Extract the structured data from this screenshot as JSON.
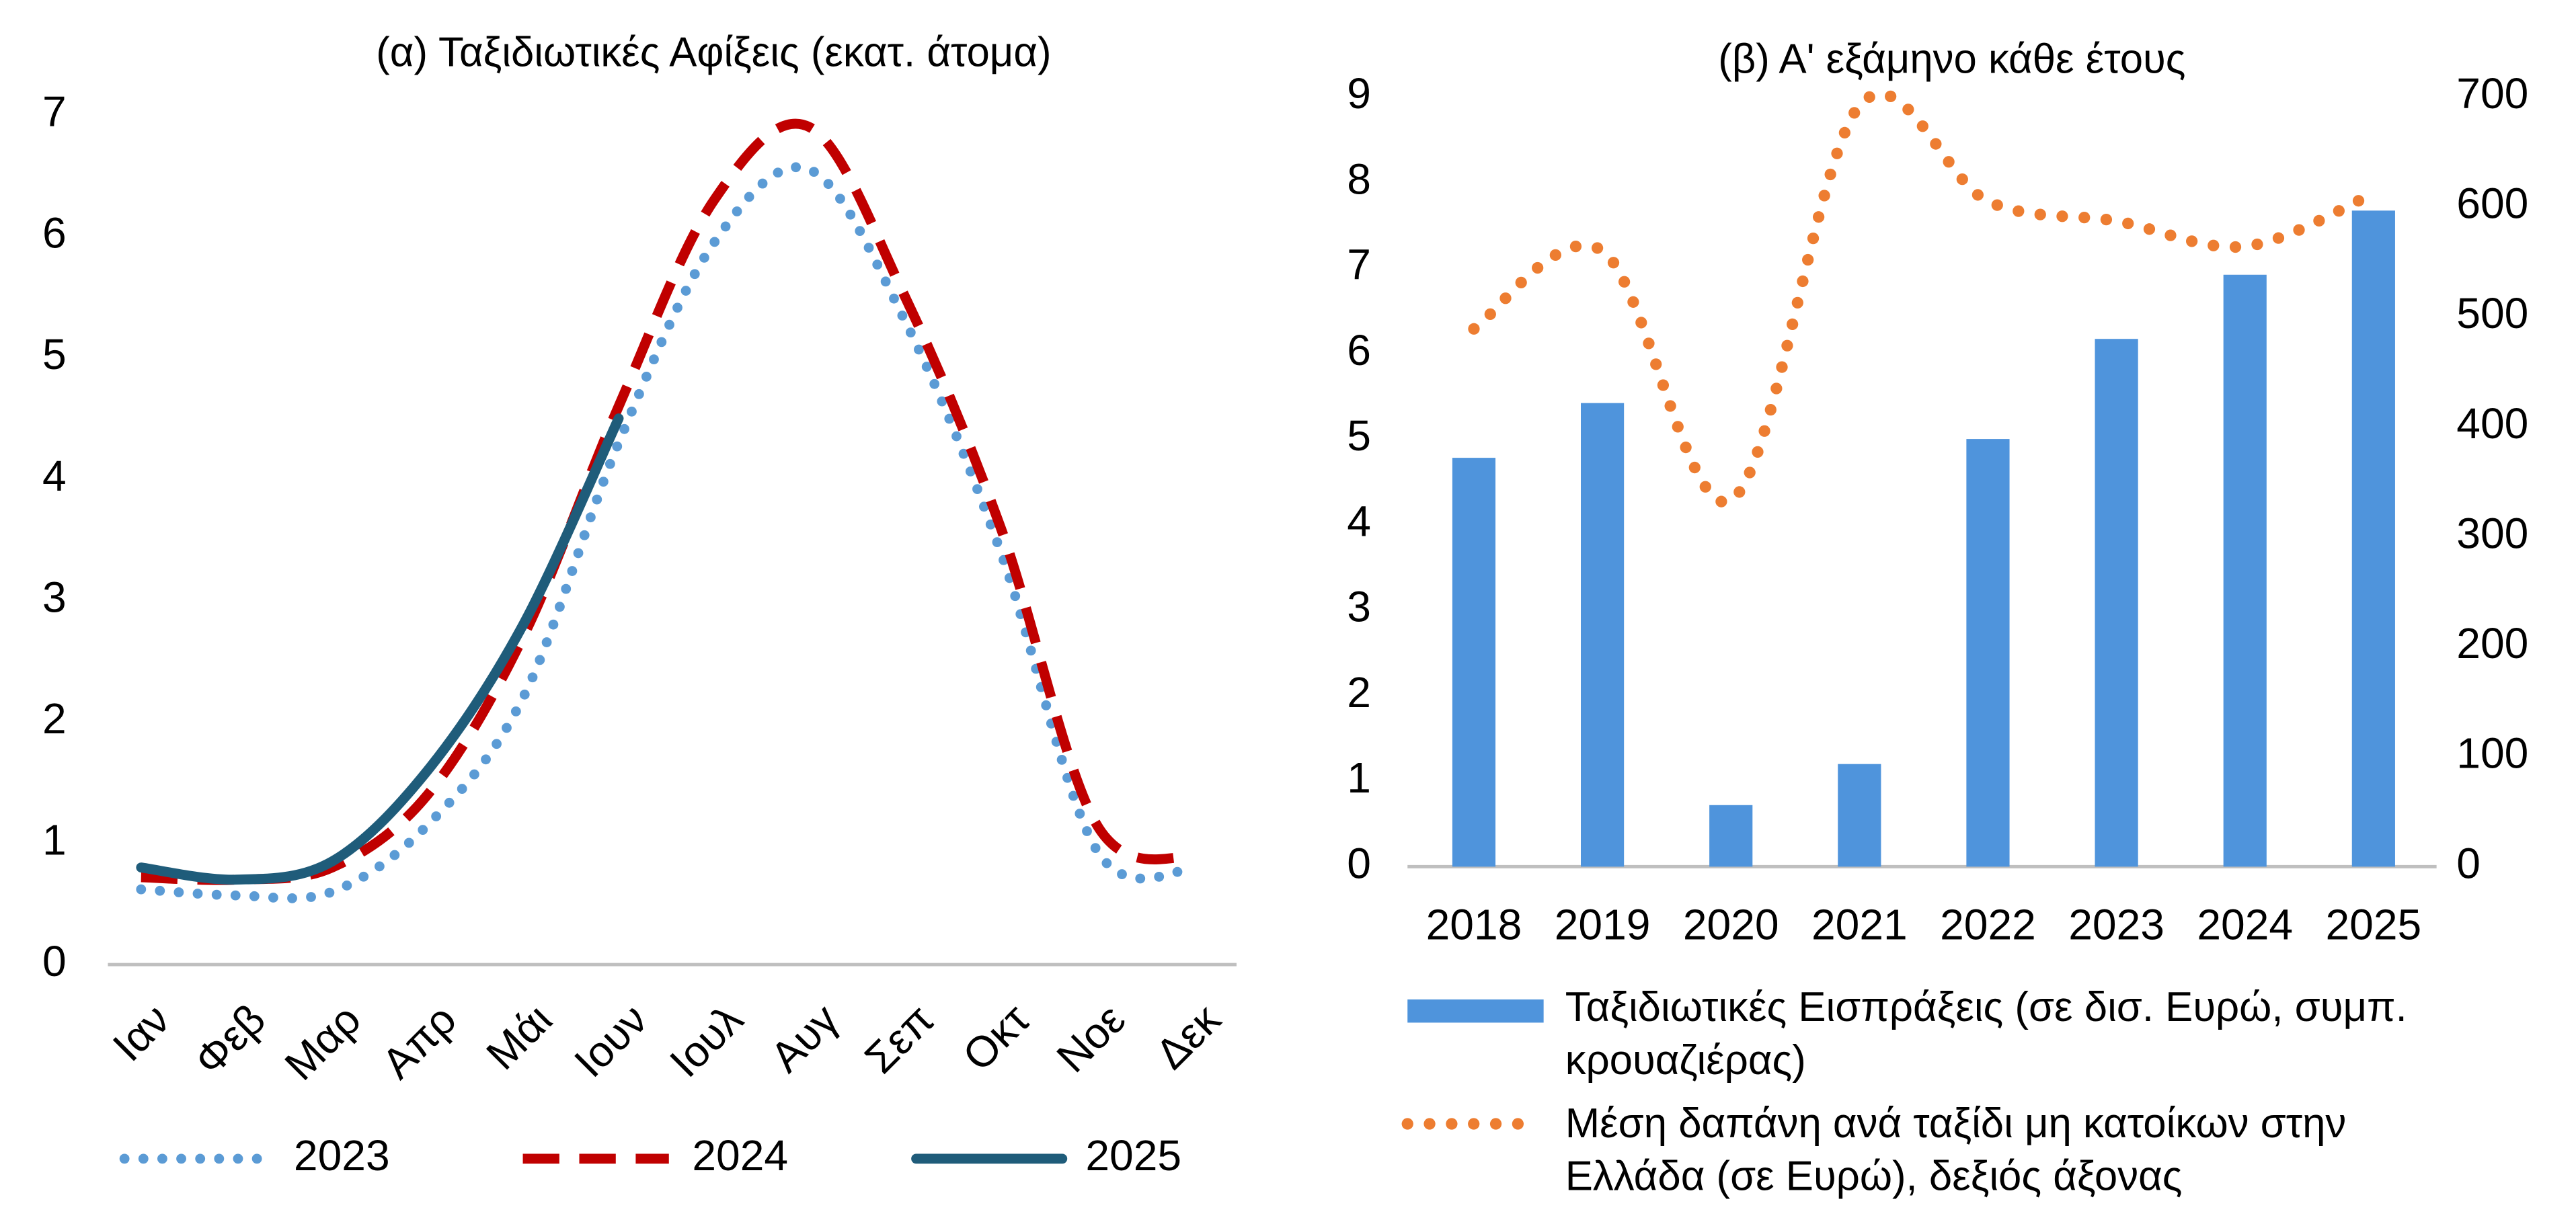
{
  "chart_data": [
    {
      "type": "line",
      "title": "(α) Ταξιδιωτικές Αφίξεις (εκατ. άτομα)",
      "categories": [
        "Ιαν",
        "Φεβ",
        "Μαρ",
        "Απρ",
        "Μάι",
        "Ιουν",
        "Ιουλ",
        "Αυγ",
        "Σεπ",
        "Οκτ",
        "Νοε",
        "Δεκ"
      ],
      "series": [
        {
          "name": "2023",
          "color": "#5b9bd5",
          "style": "dotted",
          "values": [
            0.62,
            0.57,
            0.6,
            1.15,
            2.2,
            4.3,
            5.95,
            6.55,
            5.3,
            3.4,
            0.95,
            0.78
          ]
        },
        {
          "name": "2024",
          "color": "#c00000",
          "style": "dashed",
          "values": [
            0.72,
            0.7,
            0.8,
            1.4,
            2.7,
            4.6,
            6.3,
            6.9,
            5.5,
            3.6,
            1.16,
            0.88
          ]
        },
        {
          "name": "2025",
          "color": "#1f5c7a",
          "style": "solid",
          "values": [
            0.8,
            0.7,
            0.85,
            1.6,
            2.8,
            4.5,
            null,
            null,
            null,
            null,
            null,
            null
          ]
        }
      ],
      "ylim": [
        0,
        7
      ],
      "yticks": [
        0,
        1,
        2,
        3,
        4,
        5,
        6,
        7
      ],
      "legend": "bottom"
    },
    {
      "type": "bar_line",
      "title": "(β) Α' εξάμηνο κάθε έτους",
      "categories": [
        "2018",
        "2019",
        "2020",
        "2021",
        "2022",
        "2023",
        "2024",
        "2025"
      ],
      "series": [
        {
          "name": "Ταξιδιωτικές Εισπράξεις (σε δισ. Ευρώ, συμπ. κρουαζιέρας)",
          "color": "#4f94dc",
          "kind": "bar",
          "axis": "y",
          "values": [
            4.78,
            5.42,
            0.72,
            1.2,
            5.0,
            6.17,
            6.92,
            7.67
          ]
        },
        {
          "name": "Μέση δαπάνη ανά ταξίδι μη κατοίκων στην Ελλάδα (σε Ευρώ), δεξιός άξονας",
          "color": "#ed7d31",
          "kind": "line",
          "style": "dotted",
          "axis": "y2",
          "values": [
            489,
            560,
            333,
            692,
            605,
            587,
            564,
            612
          ]
        }
      ],
      "ylim": [
        0,
        9
      ],
      "yticks": [
        0,
        1,
        2,
        3,
        4,
        5,
        6,
        7,
        8,
        9
      ],
      "y2lim": [
        0,
        700
      ],
      "y2ticks": [
        0,
        100,
        200,
        300,
        400,
        500,
        600,
        700
      ],
      "legend": "bottom"
    }
  ]
}
